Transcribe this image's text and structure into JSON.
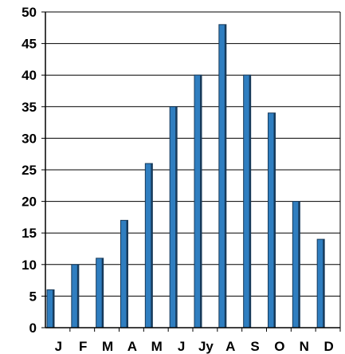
{
  "chart_data": {
    "type": "bar",
    "title": "",
    "xlabel": "",
    "ylabel": "",
    "categories": [
      "J",
      "F",
      "M",
      "A",
      "M",
      "J",
      "Jy",
      "A",
      "S",
      "O",
      "N",
      "D"
    ],
    "values": [
      6,
      10,
      11,
      17,
      26,
      35,
      40,
      48,
      40,
      34,
      20,
      14
    ],
    "ylim": [
      0,
      50
    ],
    "yticks": [
      "0",
      "5",
      "10",
      "15",
      "20",
      "25",
      "30",
      "35",
      "40",
      "45",
      "50"
    ],
    "grid": "horizontal",
    "legend": "none",
    "colors": {
      "bar": "#2f7ec0",
      "bar_shadow": "#173a5a",
      "axis": "#000000",
      "grid": "#000000"
    }
  }
}
